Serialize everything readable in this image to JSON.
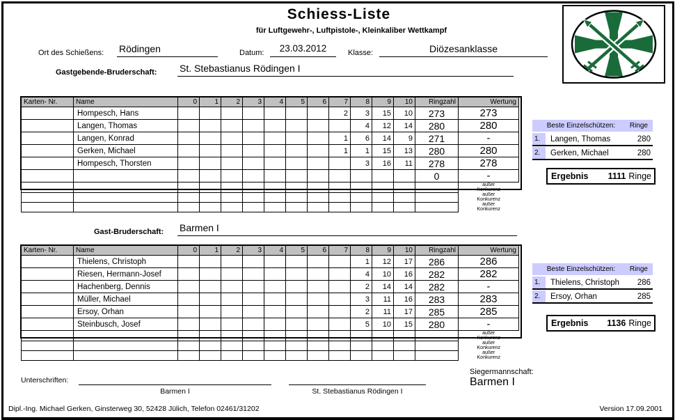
{
  "colors": {
    "table_header_bg": "#c0c0c0",
    "panel_bg": "#ccccff",
    "logo_green": "#1a6b3a"
  },
  "header": {
    "title": "Schiess-Liste",
    "subtitle": "für Luftgewehr-, Luftpistole-, Kleinkaliber Wettkampf",
    "ort_label": "Ort des Schießens:",
    "ort_value": "Rödingen",
    "datum_label": "Datum:",
    "datum_value": "23.03.2012",
    "klasse_label": "Klasse:",
    "klasse_value": "Diözesanklasse",
    "gastgeber_label": "Gastgebende-Bruderschaft:",
    "gastgeber_value": "St. Stebastianus Rödingen I",
    "gast_label": "Gast-Bruderschaft:",
    "gast_value": "Barmen I"
  },
  "score_table": {
    "headers": [
      "Karten- Nr.",
      "Name",
      "0",
      "1",
      "2",
      "3",
      "4",
      "5",
      "6",
      "7",
      "8",
      "9",
      "10",
      "Ringzahl",
      "Wertung"
    ],
    "note": [
      "außer",
      "Konkurenz"
    ]
  },
  "host_table": {
    "rows": [
      {
        "karten": "",
        "name": "Hompesch, Hans",
        "scores": {
          "7": "2",
          "8": "3",
          "9": "15",
          "10": "10"
        },
        "ringzahl": "273",
        "wertung": "273"
      },
      {
        "karten": "",
        "name": "Langen, Thomas",
        "scores": {
          "8": "4",
          "9": "12",
          "10": "14"
        },
        "ringzahl": "280",
        "wertung": "280"
      },
      {
        "karten": "",
        "name": "Langen, Konrad",
        "scores": {
          "7": "1",
          "8": "6",
          "9": "14",
          "10": "9"
        },
        "ringzahl": "271",
        "wertung": "-"
      },
      {
        "karten": "",
        "name": "Gerken, Michael",
        "scores": {
          "7": "1",
          "8": "1",
          "9": "15",
          "10": "13"
        },
        "ringzahl": "280",
        "wertung": "280"
      },
      {
        "karten": "",
        "name": "Hompesch, Thorsten",
        "scores": {
          "8": "3",
          "9": "16",
          "10": "11"
        },
        "ringzahl": "278",
        "wertung": "278"
      },
      {
        "karten": "",
        "name": "",
        "scores": {},
        "ringzahl": "0",
        "wertung": "-"
      }
    ]
  },
  "guest_table": {
    "rows": [
      {
        "karten": "",
        "name": "Thielens, Christoph",
        "scores": {
          "8": "1",
          "9": "12",
          "10": "17"
        },
        "ringzahl": "286",
        "wertung": "286"
      },
      {
        "karten": "",
        "name": "Riesen, Hermann-Josef",
        "scores": {
          "8": "4",
          "9": "10",
          "10": "16"
        },
        "ringzahl": "282",
        "wertung": "282"
      },
      {
        "karten": "",
        "name": "Hachenberg, Dennis",
        "scores": {
          "8": "2",
          "9": "14",
          "10": "14"
        },
        "ringzahl": "282",
        "wertung": "-"
      },
      {
        "karten": "",
        "name": "Müller, Michael",
        "scores": {
          "8": "3",
          "9": "11",
          "10": "16"
        },
        "ringzahl": "283",
        "wertung": "283"
      },
      {
        "karten": "",
        "name": "Ersoy, Orhan",
        "scores": {
          "8": "2",
          "9": "11",
          "10": "17"
        },
        "ringzahl": "285",
        "wertung": "285"
      },
      {
        "karten": "",
        "name": "Steinbusch, Josef",
        "scores": {
          "8": "5",
          "9": "10",
          "10": "15"
        },
        "ringzahl": "280",
        "wertung": "-"
      }
    ]
  },
  "host_panel": {
    "header_label": "Beste Einzelschützen:",
    "header_unit": "Ringe",
    "entries": [
      {
        "rank": "1.",
        "name": "Langen, Thomas",
        "score": "280"
      },
      {
        "rank": "2.",
        "name": "Gerken, Michael",
        "score": "280"
      }
    ],
    "result_label": "Ergebnis",
    "result_value": "1111",
    "result_unit": "Ringe"
  },
  "guest_panel": {
    "header_label": "Beste Einzelschützen:",
    "header_unit": "Ringe",
    "entries": [
      {
        "rank": "1.",
        "name": "Thielens, Christoph",
        "score": "286"
      },
      {
        "rank": "2.",
        "name": "Ersoy, Orhan",
        "score": "285"
      }
    ],
    "result_label": "Ergebnis",
    "result_value": "1136",
    "result_unit": "Ringe"
  },
  "winner": {
    "label": "Siegermannschaft:",
    "value": "Barmen I"
  },
  "signatures": {
    "label": "Unterschriften:",
    "left_caption": "Barmen I",
    "right_caption": "St. Stebastianus Rödingen I"
  },
  "footer": {
    "left": "Dipl.-Ing. Michael Gerken, Ginsterweg 30, 52428 Jülich, Telefon 02461/31202",
    "right": "Version 17.09.2001"
  }
}
